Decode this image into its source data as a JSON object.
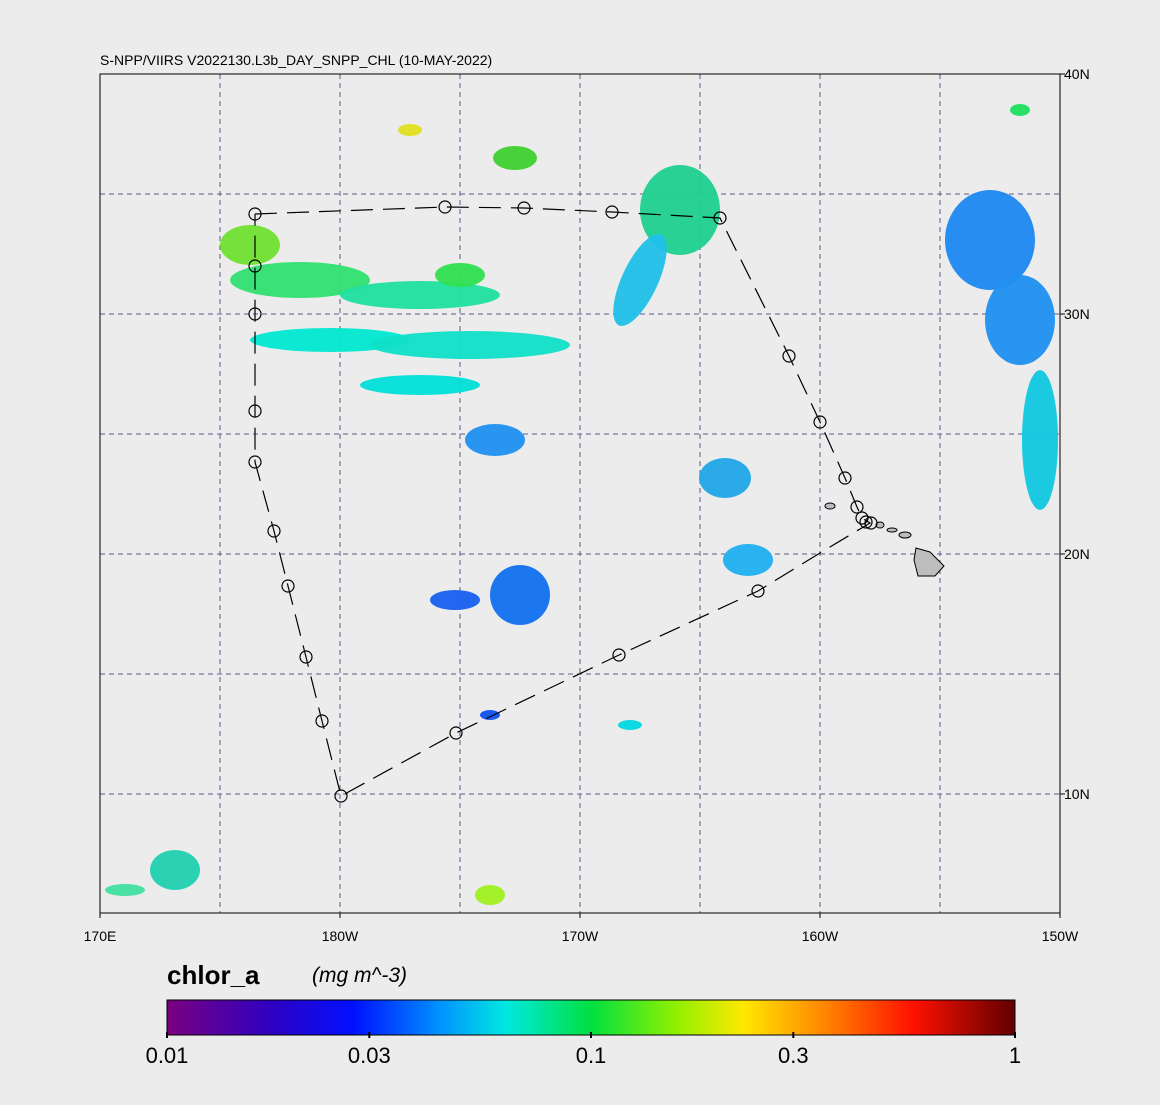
{
  "header": {
    "title": "S-NPP/VIIRS V2022130.L3b_DAY_SNPP_CHL (10-MAY-2022)"
  },
  "map": {
    "lon_lim": [
      170,
      210
    ],
    "lat_lim": [
      5.04,
      40
    ],
    "lon_ticks": [
      {
        "value": 170,
        "label": "170E"
      },
      {
        "value": 180,
        "label": "180W"
      },
      {
        "value": 190,
        "label": "170W"
      },
      {
        "value": 200,
        "label": "160W"
      },
      {
        "value": 210,
        "label": "150W"
      }
    ],
    "lat_ticks": [
      {
        "value": 40,
        "label": "40N"
      },
      {
        "value": 30,
        "label": "30N"
      },
      {
        "value": 20,
        "label": "20N"
      },
      {
        "value": 10,
        "label": "10N"
      }
    ]
  },
  "colorbar": {
    "label": "chlor_a",
    "units": "(mg m^-3)",
    "log_scale": true,
    "lim": [
      0.01,
      1
    ],
    "ticks": [
      0.01,
      0.03,
      0.1,
      0.3,
      1
    ]
  }
}
